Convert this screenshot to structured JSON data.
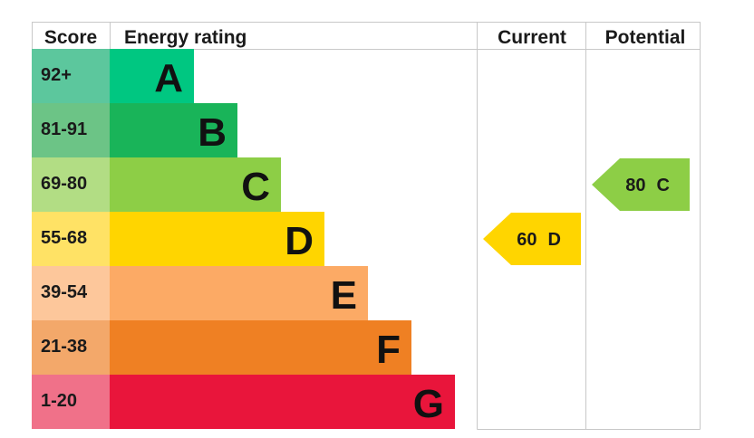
{
  "header": {
    "score": "Score",
    "energy_rating": "Energy rating",
    "current": "Current",
    "potential": "Potential"
  },
  "chart_data": {
    "type": "bar",
    "bands": [
      {
        "score": "92+",
        "letter": "A",
        "color": "#00c781",
        "score_bg": "#5cc79d",
        "score_bound": 92
      },
      {
        "score": "81-91",
        "letter": "B",
        "color": "#19b459",
        "score_bg": "#6cc486",
        "score_bound": 81
      },
      {
        "score": "69-80",
        "letter": "C",
        "color": "#8dce46",
        "score_bg": "#b2dd84",
        "score_bound": 69
      },
      {
        "score": "55-68",
        "letter": "D",
        "color": "#ffd500",
        "score_bg": "#ffe265",
        "score_bound": 55
      },
      {
        "score": "39-54",
        "letter": "E",
        "color": "#fcaa65",
        "score_bg": "#fdc79b",
        "score_bound": 39
      },
      {
        "score": "21-38",
        "letter": "F",
        "color": "#ef8023",
        "score_bg": "#f3a86a",
        "score_bound": 21
      },
      {
        "score": "1-20",
        "letter": "G",
        "color": "#e9153b",
        "score_bg": "#f07189",
        "score_bound": 1
      }
    ],
    "current": {
      "value": 60,
      "letter": "D",
      "color": "#ffd500"
    },
    "potential": {
      "value": 80,
      "letter": "C",
      "color": "#8dce46"
    }
  }
}
